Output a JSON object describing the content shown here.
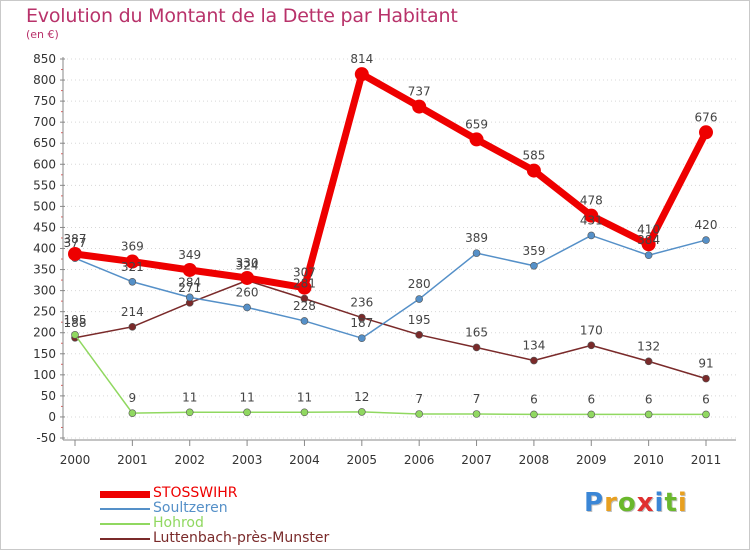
{
  "header": {
    "title": "Evolution du Montant de la Dette par Habitant",
    "unit": "(en €)"
  },
  "logo": {
    "text": "Proxiti",
    "letter_colors": [
      "#3a86d6",
      "#e8a020",
      "#6ab82c",
      "#e03030",
      "#3a86d6",
      "#6ab82c",
      "#e8a020"
    ]
  },
  "colors": {
    "title": "#b8326a",
    "axis": "#888888",
    "grid": "#d8d8d8",
    "label": "#333333"
  },
  "chart_data": {
    "type": "line",
    "title": "Evolution du Montant de la Dette par Habitant",
    "ylabel": "(en €)",
    "xlabel": "",
    "x": [
      "2000",
      "2001",
      "2002",
      "2003",
      "2004",
      "2005",
      "2006",
      "2007",
      "2008",
      "2009",
      "2010",
      "2011"
    ],
    "ylim": [
      -50,
      850
    ],
    "yticks": [
      "-50",
      "0",
      "50",
      "100",
      "150",
      "200",
      "250",
      "300",
      "350",
      "400",
      "450",
      "500",
      "550",
      "600",
      "650",
      "700",
      "750",
      "800",
      "850"
    ],
    "grid": "horizontal dotted",
    "legend_position": "bottom-left",
    "series": [
      {
        "name": "STOSSWIHR",
        "color": "#ee0000",
        "emphasis": "thick",
        "values": [
          387,
          369,
          349,
          330,
          307,
          814,
          737,
          659,
          585,
          478,
          410,
          676
        ],
        "labels": [
          "387",
          "369",
          "349",
          "330",
          "307",
          "814",
          "737",
          "659",
          "585",
          "478",
          "410",
          "676"
        ]
      },
      {
        "name": "Soultzeren",
        "color": "#5590c8",
        "values": [
          377,
          321,
          284,
          260,
          228,
          187,
          280,
          389,
          359,
          431,
          384,
          420
        ],
        "labels": [
          "377",
          "321",
          "284",
          "260",
          "228",
          "187",
          "280",
          "389",
          "359",
          "431",
          "384",
          "420"
        ]
      },
      {
        "name": "Hohrod",
        "color": "#90d860",
        "values": [
          195,
          9,
          11,
          11,
          11,
          12,
          7,
          7,
          6,
          6,
          6,
          6
        ],
        "labels": [
          "195",
          "9",
          "11",
          "11",
          "11",
          "12",
          "7",
          "7",
          "6",
          "6",
          "6",
          "6"
        ]
      },
      {
        "name": "Luttenbach-près-Munster",
        "color": "#7a2a2a",
        "values": [
          188,
          214,
          271,
          324,
          281,
          236,
          195,
          165,
          134,
          170,
          132,
          91
        ],
        "labels": [
          "188",
          "214",
          "271",
          "324",
          "281",
          "236",
          "195",
          "165",
          "134",
          "170",
          "132",
          "91"
        ]
      }
    ]
  }
}
